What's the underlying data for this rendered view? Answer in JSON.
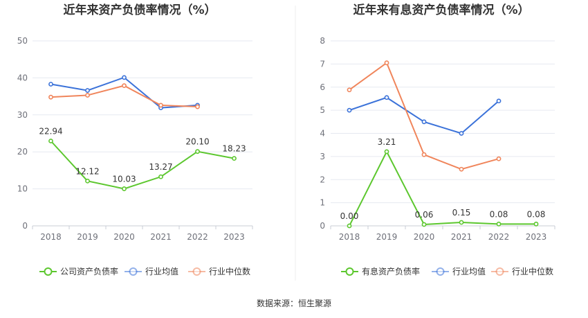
{
  "source": "数据来源：恒生聚源",
  "colors": {
    "company": "#5cc72e",
    "industry_avg": "#3b72d9",
    "industry_median": "#f0855b",
    "grid": "#e6e9f0",
    "axis": "#6e7079"
  },
  "chart_data": [
    {
      "type": "line",
      "title": "近年来资产负债率情况（%）",
      "categories": [
        "2018",
        "2019",
        "2020",
        "2021",
        "2022",
        "2023"
      ],
      "ylim": [
        0,
        50
      ],
      "yticks": [
        "0",
        "10",
        "20",
        "30",
        "40",
        "50"
      ],
      "grid": true,
      "legend_position": "bottom",
      "series": [
        {
          "name": "公司资产负债率",
          "values": [
            22.94,
            12.12,
            10.03,
            13.27,
            20.1,
            18.23
          ],
          "labels": [
            "22.94",
            "12.12",
            "10.03",
            "13.27",
            "20.10",
            "18.23"
          ]
        },
        {
          "name": "行业均值",
          "values": [
            38.3,
            36.6,
            40.1,
            31.9,
            32.6,
            null
          ]
        },
        {
          "name": "行业中位数",
          "values": [
            34.8,
            35.3,
            37.9,
            32.6,
            32.2,
            null
          ]
        }
      ]
    },
    {
      "type": "line",
      "title": "近年来有息资产负债率情况（%）",
      "categories": [
        "2018",
        "2019",
        "2020",
        "2021",
        "2022",
        "2023"
      ],
      "ylim": [
        0,
        8
      ],
      "yticks": [
        "0",
        "1",
        "2",
        "3",
        "4",
        "5",
        "6",
        "7",
        "8"
      ],
      "grid": true,
      "legend_position": "bottom",
      "series": [
        {
          "name": "有息资产负债率",
          "values": [
            0.0,
            3.21,
            0.06,
            0.15,
            0.08,
            0.08
          ],
          "labels": [
            "0.00",
            "3.21",
            "0.06",
            "0.15",
            "0.08",
            "0.08"
          ]
        },
        {
          "name": "行业均值",
          "values": [
            5.0,
            5.55,
            4.5,
            4.0,
            5.4,
            null
          ]
        },
        {
          "name": "行业中位数",
          "values": [
            5.88,
            7.05,
            3.08,
            2.45,
            2.9,
            null
          ]
        }
      ]
    }
  ]
}
